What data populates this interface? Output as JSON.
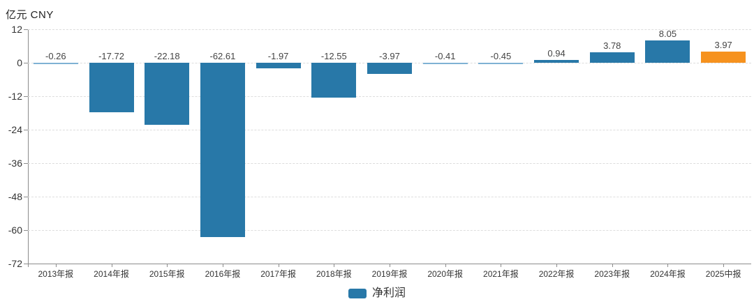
{
  "header": {
    "y_axis_title": "亿元 CNY"
  },
  "legend": {
    "items": [
      {
        "label": "净利润",
        "color": "#2878a8"
      }
    ]
  },
  "chart_data": {
    "type": "bar",
    "title": "",
    "ylabel": "亿元 CNY",
    "categories": [
      "2013年报",
      "2014年报",
      "2015年报",
      "2016年报",
      "2017年报",
      "2018年报",
      "2019年报",
      "2020年报",
      "2021年报",
      "2022年报",
      "2023年报",
      "2024年报",
      "2025中报"
    ],
    "series": [
      {
        "name": "净利润",
        "color": "#2878a8",
        "values": [
          -0.26,
          -17.72,
          -22.18,
          -62.61,
          -1.97,
          -12.55,
          -3.97,
          -0.41,
          -0.45,
          0.94,
          3.78,
          8.05,
          3.97
        ]
      }
    ],
    "value_labels": [
      "-0.26",
      "-17.72",
      "-22.18",
      "-62.61",
      "-1.97",
      "-12.55",
      "-3.97",
      "-0.41",
      "-0.45",
      "0.94",
      "3.78",
      "8.05",
      "3.97"
    ],
    "highlight": {
      "index": 12,
      "color": "#f6921e"
    },
    "thin_bar_color": "#7fb2d4",
    "yticks": [
      12,
      0,
      -12,
      -24,
      -36,
      -48,
      -60,
      -72
    ],
    "ylim": [
      -72,
      12
    ],
    "grid": "dashed-horizontal",
    "legend_position": "bottom-center"
  }
}
